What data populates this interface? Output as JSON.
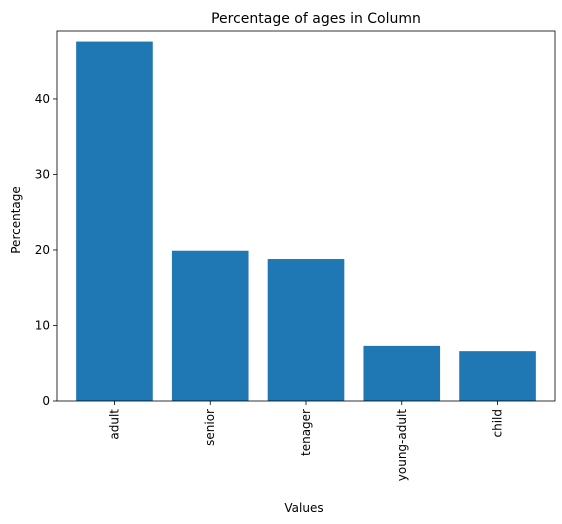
{
  "colors": {
    "bar": "#1f77b4",
    "axis": "#000000",
    "background": "#ffffff"
  },
  "chart_data": {
    "type": "bar",
    "title": "Percentage of ages in Column",
    "xlabel": "Values",
    "ylabel": "Percentage",
    "categories": [
      "adult",
      "senior",
      "tenager",
      "young-adult",
      "child"
    ],
    "values": [
      47.6,
      19.9,
      18.8,
      7.3,
      6.6
    ],
    "ylim": [
      0,
      49
    ],
    "yticks": [
      0,
      10,
      20,
      30,
      40
    ],
    "grid": false,
    "legend": false
  }
}
